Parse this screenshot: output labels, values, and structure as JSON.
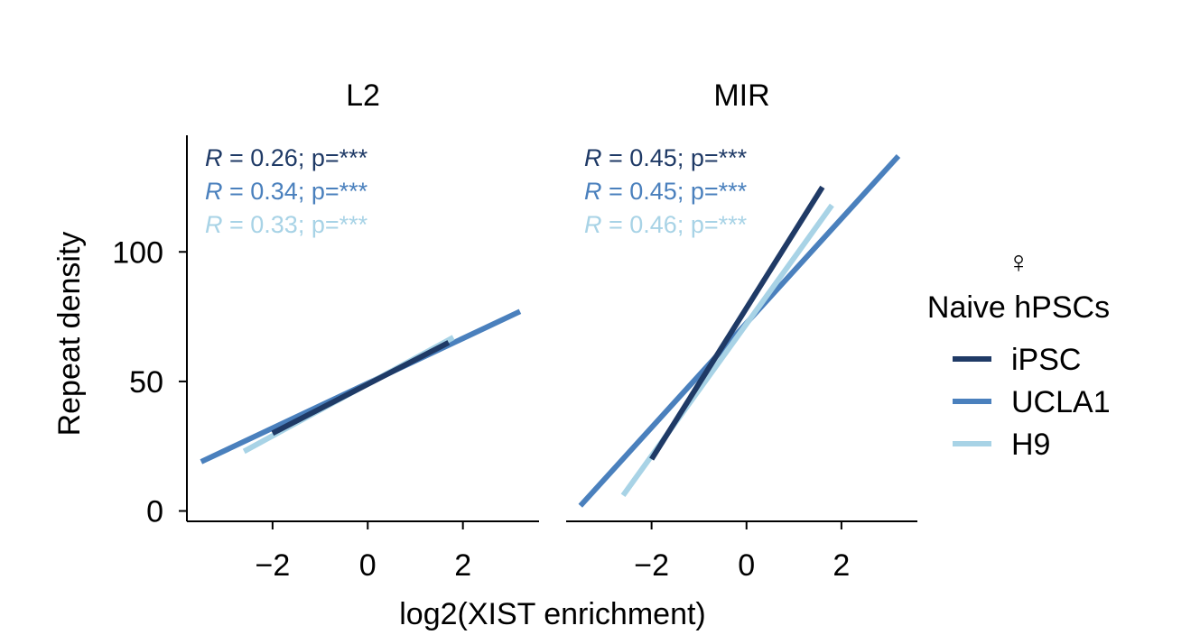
{
  "chart_data": {
    "type": "line",
    "xlabel": "log2(XIST enrichment)",
    "ylabel": "Repeat density",
    "xlim": [
      -3.8,
      3.6
    ],
    "ylim": [
      -4,
      145
    ],
    "x_ticks": [
      -2,
      0,
      2
    ],
    "x_tick_labels": [
      "−2",
      "0",
      "2"
    ],
    "y_ticks": [
      0,
      50,
      100
    ],
    "y_tick_labels": [
      "0",
      "50",
      "100"
    ],
    "grid": false,
    "legend": {
      "position": "right",
      "symbol": "♀",
      "title": "Naive hPSCs",
      "entries": [
        "iPSC",
        "UCLA1",
        "H9"
      ]
    },
    "colors": {
      "iPSC": "#1f3a66",
      "UCLA1": "#4a80bd",
      "H9": "#a8d3e6"
    },
    "panels": [
      {
        "title": "L2",
        "series": [
          {
            "name": "iPSC",
            "x": [
              -2.0,
              1.7
            ],
            "y": [
              30,
              65
            ]
          },
          {
            "name": "UCLA1",
            "x": [
              -3.5,
              3.2
            ],
            "y": [
              19,
              77
            ]
          },
          {
            "name": "H9",
            "x": [
              -2.6,
              1.8
            ],
            "y": [
              23,
              67
            ]
          }
        ],
        "annotations": [
          {
            "series": "iPSC",
            "r_symbol": "R",
            "r_text": " = 0.26; p=***"
          },
          {
            "series": "UCLA1",
            "r_symbol": "R",
            "r_text": " = 0.34; p=***"
          },
          {
            "series": "H9",
            "r_symbol": "R",
            "r_text": " = 0.33; p=***"
          }
        ]
      },
      {
        "title": "MIR",
        "series": [
          {
            "name": "iPSC",
            "x": [
              -2.0,
              1.6
            ],
            "y": [
              20,
              125
            ]
          },
          {
            "name": "UCLA1",
            "x": [
              -3.5,
              3.2
            ],
            "y": [
              2,
              137
            ]
          },
          {
            "name": "H9",
            "x": [
              -2.6,
              1.8
            ],
            "y": [
              6,
              118
            ]
          }
        ],
        "annotations": [
          {
            "series": "iPSC",
            "r_symbol": "R",
            "r_text": " = 0.45; p=***"
          },
          {
            "series": "UCLA1",
            "r_symbol": "R",
            "r_text": " = 0.45; p=***"
          },
          {
            "series": "H9",
            "r_symbol": "R",
            "r_text": " = 0.46; p=***"
          }
        ]
      }
    ]
  }
}
